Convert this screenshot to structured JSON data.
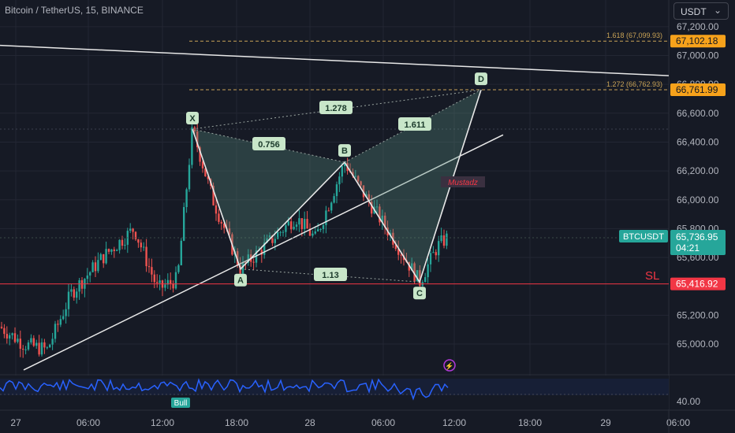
{
  "header": {
    "title": "Bitcoin / TetherUS, 15, BINANCE",
    "currency": "USDT"
  },
  "colors": {
    "background": "#161a25",
    "grid": "#232633",
    "up": "#26a69a",
    "down": "#ef5350",
    "pattern_fill": "#5a8f80",
    "label_bg": "#c8e6c9",
    "rsi_line": "#2962ff",
    "fib": "#c9a356",
    "sl": "#f23645",
    "white_line": "#e8e8e8"
  },
  "chart_data": {
    "type": "candlestick",
    "symbol": "BTCUSDT",
    "timeframe": "15",
    "price_axis_ticks": [
      "67,200.00",
      "67,000.00",
      "66,800.00",
      "66,600.00",
      "66,400.00",
      "66,200.00",
      "66,000.00",
      "65,800.00",
      "65,600.00",
      "65,200.00",
      "65,000.00"
    ],
    "time_axis_ticks": [
      "27",
      "06:00",
      "12:00",
      "18:00",
      "28",
      "06:00",
      "12:00",
      "18:00",
      "29",
      "06:00"
    ],
    "ylim": [
      64900,
      67250
    ],
    "harmonic_points": [
      {
        "label": "X",
        "price": 66490
      },
      {
        "label": "A",
        "price": 65520
      },
      {
        "label": "B",
        "price": 66260
      },
      {
        "label": "C",
        "price": 65430
      },
      {
        "label": "D",
        "price": 66762
      }
    ],
    "ratios": [
      "0.756",
      "1.278",
      "1.611",
      "1.13"
    ],
    "fib_levels": [
      {
        "label": "1.618 (67,099.93)",
        "price": 67099.93,
        "tag": "67,102.18"
      },
      {
        "label": "1.272 (66,762.93)",
        "price": 66762.93,
        "tag": "66,761.99"
      }
    ],
    "current": {
      "symbol_tag": "BTCUSDT",
      "price": "65,736.95",
      "countdown": "04:21",
      "value": 65736.95
    },
    "stop_loss": {
      "label": "SL",
      "price": "65,416.92",
      "value": 65416.92
    },
    "watermark": "Mustadz",
    "rsi": {
      "tick": "40.00",
      "bull_label": "Bull"
    }
  }
}
